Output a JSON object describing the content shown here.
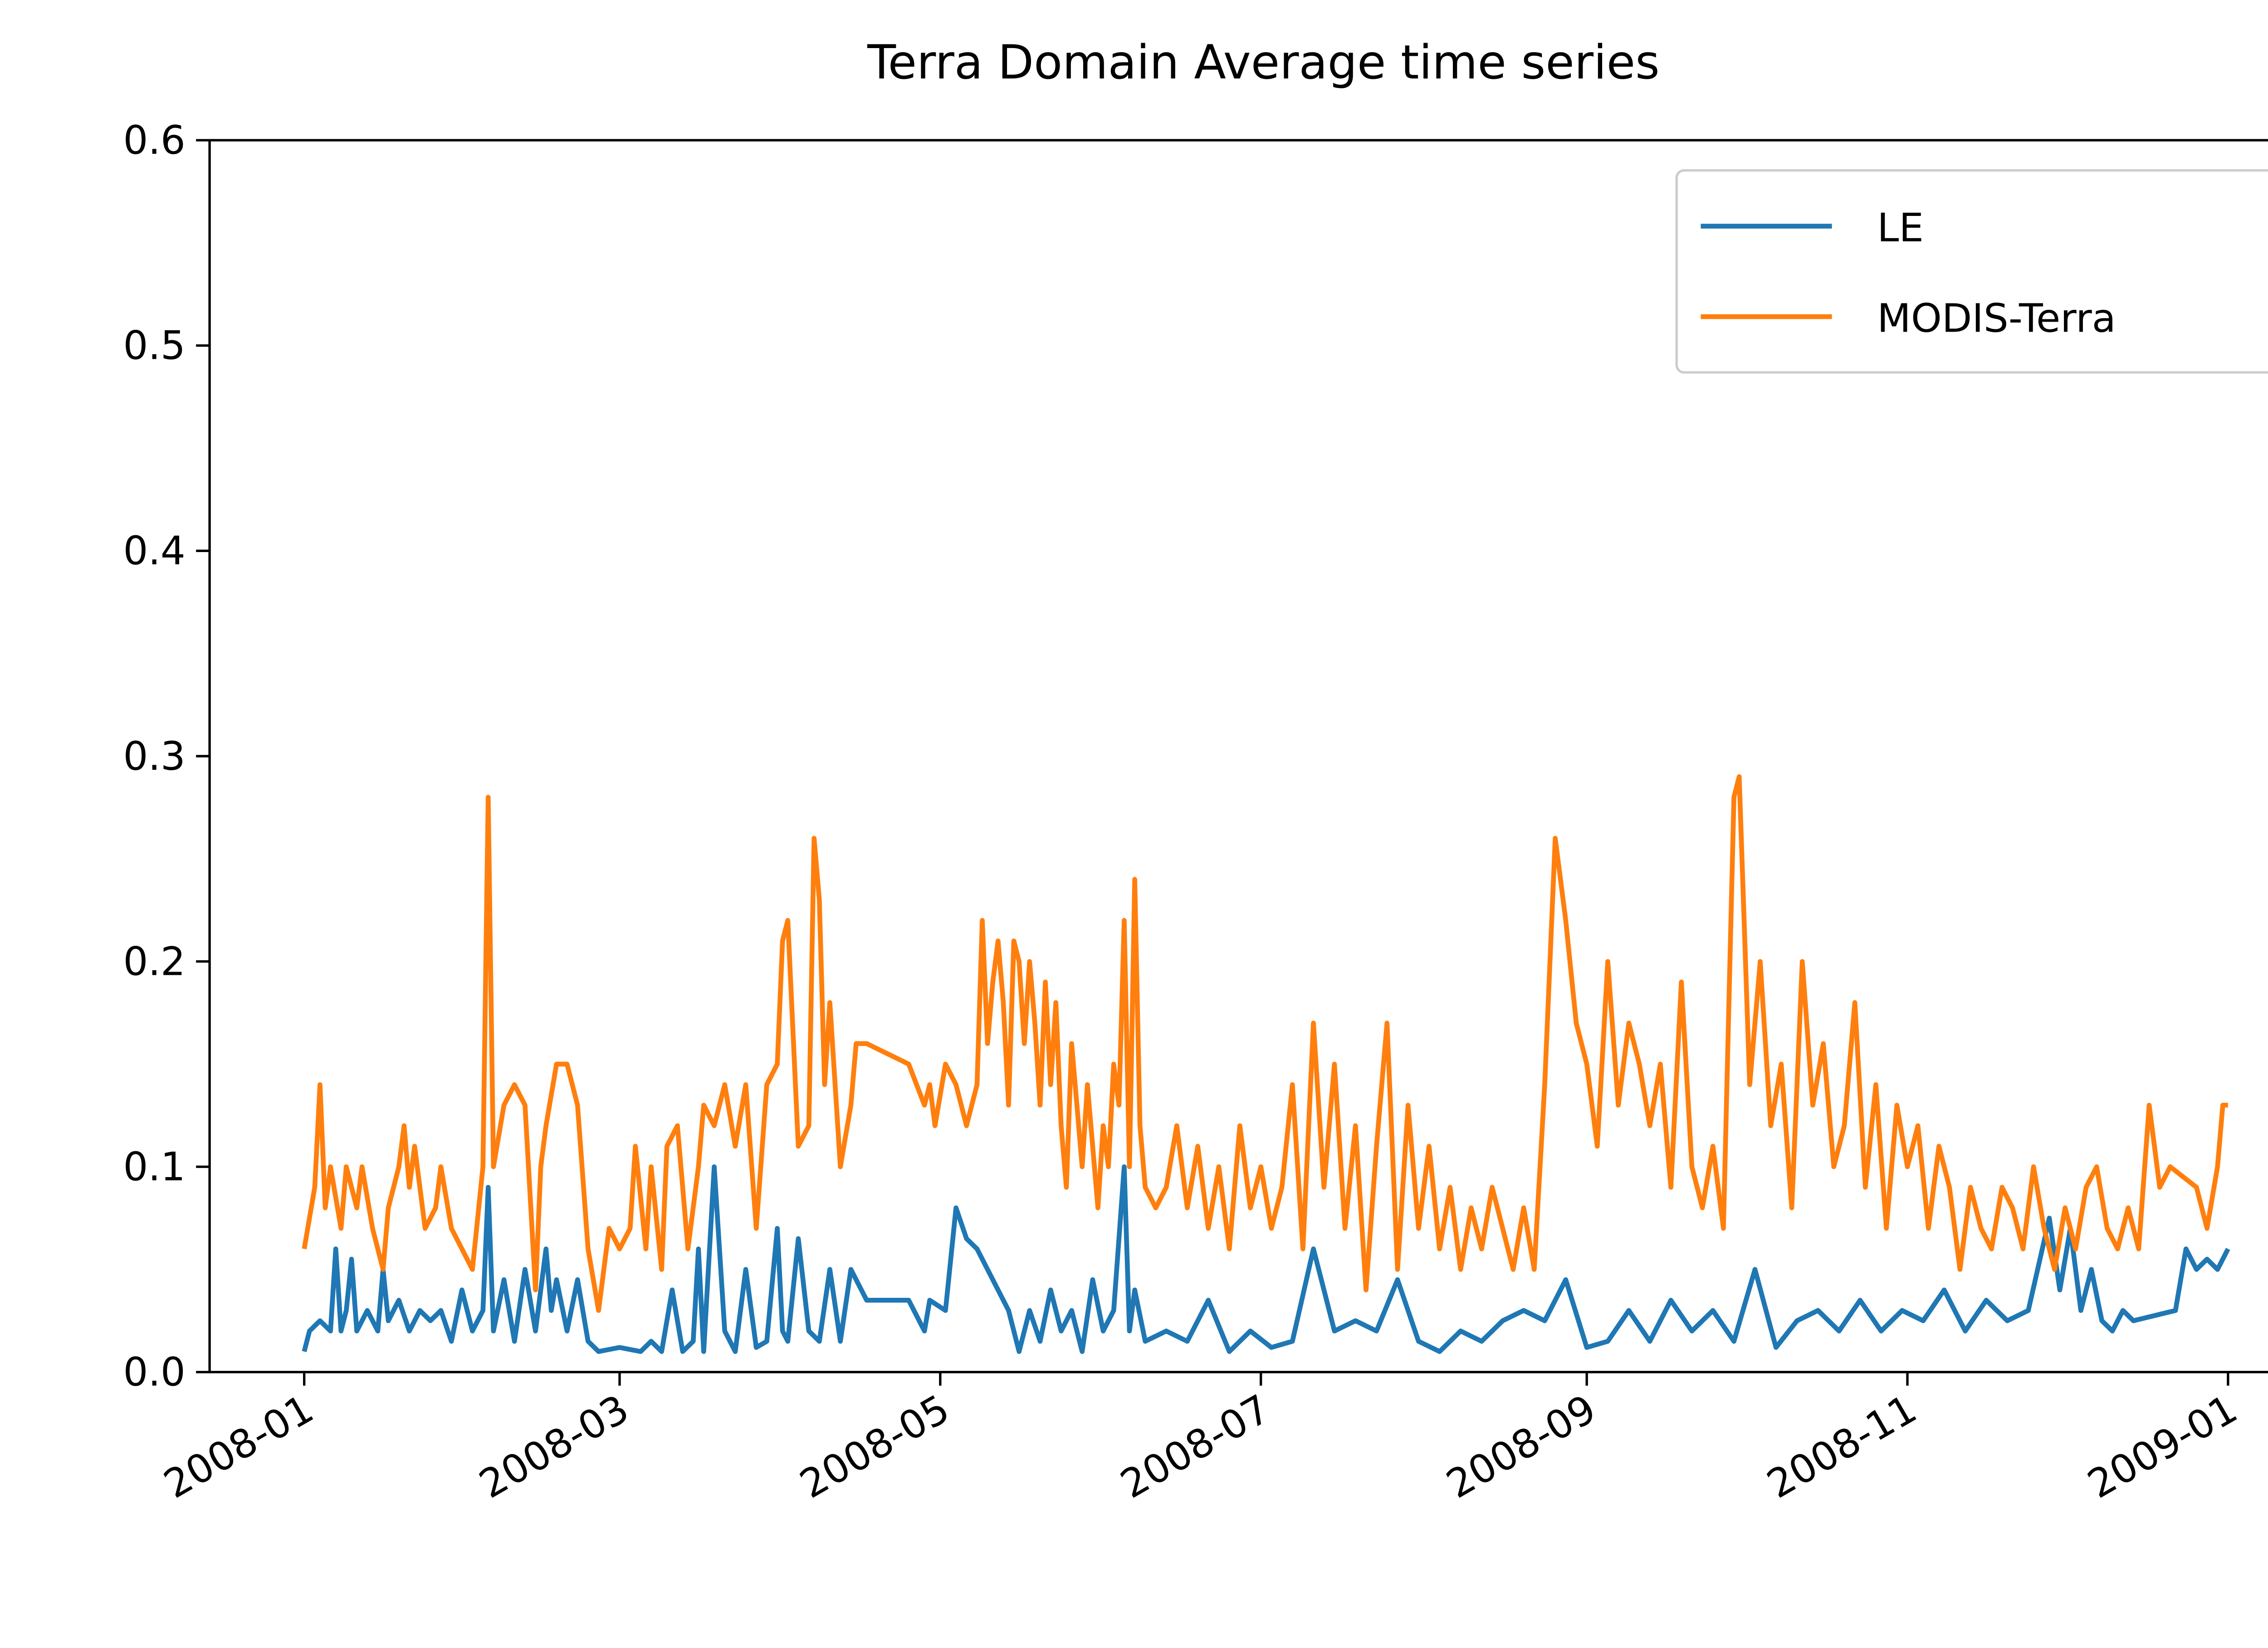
{
  "chart_data": {
    "type": "line",
    "title": "Terra Domain Average time series",
    "xlim": [
      -18,
      383
    ],
    "xticks": [
      {
        "value": 0,
        "label": "2008-01"
      },
      {
        "value": 60,
        "label": "2008-03"
      },
      {
        "value": 121,
        "label": "2008-05"
      },
      {
        "value": 182,
        "label": "2008-07"
      },
      {
        "value": 244,
        "label": "2008-09"
      },
      {
        "value": 305,
        "label": "2008-11"
      },
      {
        "value": 366,
        "label": "2009-01"
      }
    ],
    "ylim": [
      0,
      0.6
    ],
    "yticks": [
      {
        "value": 0,
        "label": "0.0"
      },
      0.1,
      0.2,
      0.3,
      0.4,
      0.5,
      0.6
    ],
    "legend": "upper right",
    "series": [
      {
        "name": "LE",
        "color": "#1f77b4",
        "x": [
          0,
          1,
          3,
          5,
          6,
          7,
          8,
          9,
          10,
          12,
          14,
          15,
          16,
          18,
          20,
          22,
          24,
          26,
          28,
          30,
          32,
          34,
          35,
          36,
          38,
          40,
          42,
          44,
          46,
          47,
          48,
          50,
          52,
          54,
          56,
          60,
          64,
          66,
          68,
          70,
          72,
          74,
          75,
          76,
          78,
          80,
          82,
          84,
          86,
          88,
          90,
          91,
          92,
          94,
          96,
          98,
          100,
          102,
          104,
          107,
          115,
          118,
          119,
          122,
          124,
          126,
          128,
          130,
          132,
          134,
          136,
          138,
          140,
          142,
          144,
          146,
          148,
          150,
          152,
          154,
          156,
          157,
          158,
          160,
          164,
          168,
          172,
          176,
          180,
          184,
          188,
          192,
          196,
          200,
          204,
          208,
          212,
          216,
          220,
          224,
          228,
          232,
          236,
          240,
          244,
          248,
          252,
          256,
          260,
          264,
          268,
          272,
          276,
          280,
          284,
          288,
          292,
          296,
          300,
          304,
          308,
          312,
          316,
          320,
          324,
          328,
          332,
          334,
          336,
          338,
          340,
          342,
          344,
          346,
          348,
          356,
          358,
          360,
          362,
          364,
          366
        ],
        "values": [
          0.01,
          0.02,
          0.025,
          0.02,
          0.06,
          0.02,
          0.03,
          0.055,
          0.02,
          0.03,
          0.02,
          0.05,
          0.025,
          0.035,
          0.02,
          0.03,
          0.025,
          0.03,
          0.015,
          0.04,
          0.02,
          0.03,
          0.09,
          0.02,
          0.045,
          0.015,
          0.05,
          0.02,
          0.06,
          0.03,
          0.045,
          0.02,
          0.045,
          0.015,
          0.01,
          0.012,
          0.01,
          0.015,
          0.01,
          0.04,
          0.01,
          0.015,
          0.06,
          0.01,
          0.1,
          0.02,
          0.01,
          0.05,
          0.012,
          0.015,
          0.07,
          0.02,
          0.015,
          0.065,
          0.02,
          0.015,
          0.05,
          0.015,
          0.05,
          0.035,
          0.035,
          0.02,
          0.035,
          0.03,
          0.08,
          0.065,
          0.06,
          0.05,
          0.04,
          0.03,
          0.01,
          0.03,
          0.015,
          0.04,
          0.02,
          0.03,
          0.01,
          0.045,
          0.02,
          0.03,
          0.1,
          0.02,
          0.04,
          0.015,
          0.02,
          0.015,
          0.035,
          0.01,
          0.02,
          0.012,
          0.015,
          0.06,
          0.02,
          0.025,
          0.02,
          0.045,
          0.015,
          0.01,
          0.02,
          0.015,
          0.025,
          0.03,
          0.025,
          0.045,
          0.012,
          0.015,
          0.03,
          0.015,
          0.035,
          0.02,
          0.03,
          0.015,
          0.05,
          0.012,
          0.025,
          0.03,
          0.02,
          0.035,
          0.02,
          0.03,
          0.025,
          0.04,
          0.02,
          0.035,
          0.025,
          0.03,
          0.075,
          0.04,
          0.07,
          0.03,
          0.05,
          0.025,
          0.02,
          0.03,
          0.025,
          0.03,
          0.06,
          0.05,
          0.055,
          0.05,
          0.06
        ]
      },
      {
        "name": "MODIS-Terra",
        "color": "#ff7f0e",
        "x": [
          0,
          2,
          3,
          4,
          5,
          7,
          8,
          10,
          11,
          13,
          15,
          16,
          18,
          19,
          20,
          21,
          23,
          25,
          26,
          28,
          30,
          32,
          34,
          35,
          36,
          38,
          40,
          42,
          44,
          45,
          46,
          48,
          50,
          52,
          54,
          56,
          58,
          60,
          62,
          63,
          65,
          66,
          68,
          69,
          71,
          73,
          75,
          76,
          78,
          80,
          82,
          84,
          86,
          88,
          90,
          91,
          92,
          94,
          96,
          97,
          98,
          99,
          100,
          102,
          104,
          105,
          107,
          115,
          118,
          119,
          120,
          122,
          124,
          126,
          128,
          129,
          130,
          131,
          132,
          133,
          134,
          135,
          136,
          137,
          138,
          139,
          140,
          141,
          142,
          143,
          144,
          145,
          146,
          147,
          148,
          149,
          150,
          151,
          152,
          153,
          154,
          155,
          156,
          157,
          158,
          159,
          160,
          162,
          164,
          166,
          168,
          170,
          172,
          174,
          176,
          178,
          180,
          182,
          184,
          186,
          188,
          190,
          192,
          194,
          196,
          198,
          200,
          202,
          204,
          206,
          208,
          210,
          212,
          214,
          216,
          218,
          220,
          222,
          224,
          226,
          228,
          230,
          232,
          234,
          236,
          238,
          240,
          242,
          244,
          246,
          248,
          250,
          252,
          254,
          256,
          258,
          260,
          262,
          264,
          266,
          268,
          270,
          272,
          273,
          275,
          277,
          279,
          281,
          283,
          285,
          287,
          289,
          291,
          293,
          295,
          297,
          299,
          301,
          303,
          305,
          307,
          309,
          311,
          313,
          315,
          317,
          319,
          321,
          323,
          325,
          327,
          329,
          331,
          333,
          335,
          337,
          339,
          341,
          343,
          345,
          347,
          349,
          351,
          353,
          355,
          360,
          362,
          364,
          365,
          366
        ],
        "values": [
          0.06,
          0.09,
          0.14,
          0.08,
          0.1,
          0.07,
          0.1,
          0.08,
          0.1,
          0.07,
          0.05,
          0.08,
          0.1,
          0.12,
          0.09,
          0.11,
          0.07,
          0.08,
          0.1,
          0.07,
          0.06,
          0.05,
          0.1,
          0.28,
          0.1,
          0.13,
          0.14,
          0.13,
          0.04,
          0.1,
          0.12,
          0.15,
          0.15,
          0.13,
          0.06,
          0.03,
          0.07,
          0.06,
          0.07,
          0.11,
          0.06,
          0.1,
          0.05,
          0.11,
          0.12,
          0.06,
          0.1,
          0.13,
          0.12,
          0.14,
          0.11,
          0.14,
          0.07,
          0.14,
          0.15,
          0.21,
          0.22,
          0.11,
          0.12,
          0.26,
          0.23,
          0.14,
          0.18,
          0.1,
          0.13,
          0.16,
          0.16,
          0.15,
          0.13,
          0.14,
          0.12,
          0.15,
          0.14,
          0.12,
          0.14,
          0.22,
          0.16,
          0.19,
          0.21,
          0.18,
          0.13,
          0.21,
          0.2,
          0.16,
          0.2,
          0.17,
          0.13,
          0.19,
          0.14,
          0.18,
          0.12,
          0.09,
          0.16,
          0.13,
          0.1,
          0.14,
          0.11,
          0.08,
          0.12,
          0.1,
          0.15,
          0.13,
          0.22,
          0.1,
          0.24,
          0.12,
          0.09,
          0.08,
          0.09,
          0.12,
          0.08,
          0.11,
          0.07,
          0.1,
          0.06,
          0.12,
          0.08,
          0.1,
          0.07,
          0.09,
          0.14,
          0.06,
          0.17,
          0.09,
          0.15,
          0.07,
          0.12,
          0.04,
          0.11,
          0.17,
          0.05,
          0.13,
          0.07,
          0.11,
          0.06,
          0.09,
          0.05,
          0.08,
          0.06,
          0.09,
          0.07,
          0.05,
          0.08,
          0.05,
          0.14,
          0.26,
          0.22,
          0.17,
          0.15,
          0.11,
          0.2,
          0.13,
          0.17,
          0.15,
          0.12,
          0.15,
          0.09,
          0.19,
          0.1,
          0.08,
          0.11,
          0.07,
          0.28,
          0.29,
          0.14,
          0.2,
          0.12,
          0.15,
          0.08,
          0.2,
          0.13,
          0.16,
          0.1,
          0.12,
          0.18,
          0.09,
          0.14,
          0.07,
          0.13,
          0.1,
          0.12,
          0.07,
          0.11,
          0.09,
          0.05,
          0.09,
          0.07,
          0.06,
          0.09,
          0.08,
          0.06,
          0.1,
          0.07,
          0.05,
          0.08,
          0.06,
          0.09,
          0.1,
          0.07,
          0.06,
          0.08,
          0.06,
          0.13,
          0.09,
          0.1,
          0.09,
          0.07,
          0.1,
          0.13,
          0.13
        ]
      }
    ]
  }
}
